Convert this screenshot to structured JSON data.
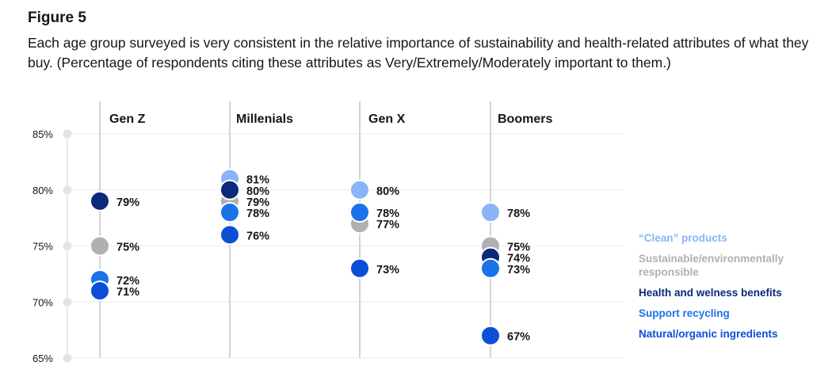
{
  "figure_label": "Figure 5",
  "caption": "Each age group surveyed is very consistent in the relative importance of sustainability and health-related attributes of what they buy. (Percentage of respondents citing these attributes as Very/Extremely/Moderately important to them.)",
  "chart_data": {
    "type": "scatter",
    "categories": [
      "Gen Z",
      "Millenials",
      "Gen X",
      "Boomers"
    ],
    "ylim": [
      65,
      85
    ],
    "yticks": [
      "85%",
      "80%",
      "75%",
      "70%",
      "65%"
    ],
    "ytick_values": [
      85,
      80,
      75,
      70,
      65
    ],
    "grid": true,
    "legend_position": "right",
    "series": [
      {
        "name": "“Clean” products",
        "color": "#8ab4f8",
        "values": [
          75,
          81,
          80,
          78
        ]
      },
      {
        "name": "Sustainable/environmentally responsible",
        "color": "#b0b0b0",
        "values": [
          75,
          79,
          77,
          75
        ]
      },
      {
        "name": "Health and welness benefits",
        "color": "#0a2a7a",
        "values": [
          79,
          80,
          78,
          74
        ]
      },
      {
        "name": "Support recycling",
        "color": "#1a73e8",
        "values": [
          72,
          78,
          78,
          73
        ]
      },
      {
        "name": "Natural/organic ingredients",
        "color": "#0b4fd6",
        "values": [
          71,
          76,
          73,
          67
        ]
      }
    ],
    "data_labels": [
      [
        {
          "text": "79%",
          "y": 79
        },
        {
          "text": "75%",
          "y": 75
        },
        {
          "text": "72%",
          "y": 72
        },
        {
          "text": "71%",
          "y": 71
        }
      ],
      [
        {
          "text": "81%",
          "y": 81
        },
        {
          "text": "80%",
          "y": 80
        },
        {
          "text": "79%",
          "y": 79
        },
        {
          "text": "78%",
          "y": 78
        },
        {
          "text": "76%",
          "y": 76
        }
      ],
      [
        {
          "text": "80%",
          "y": 80
        },
        {
          "text": "78%",
          "y": 78
        },
        {
          "text": "77%",
          "y": 77
        },
        {
          "text": "73%",
          "y": 73
        }
      ],
      [
        {
          "text": "78%",
          "y": 78
        },
        {
          "text": "75%",
          "y": 75
        },
        {
          "text": "74%",
          "y": 74
        },
        {
          "text": "73%",
          "y": 73
        },
        {
          "text": "67%",
          "y": 67
        }
      ]
    ]
  }
}
